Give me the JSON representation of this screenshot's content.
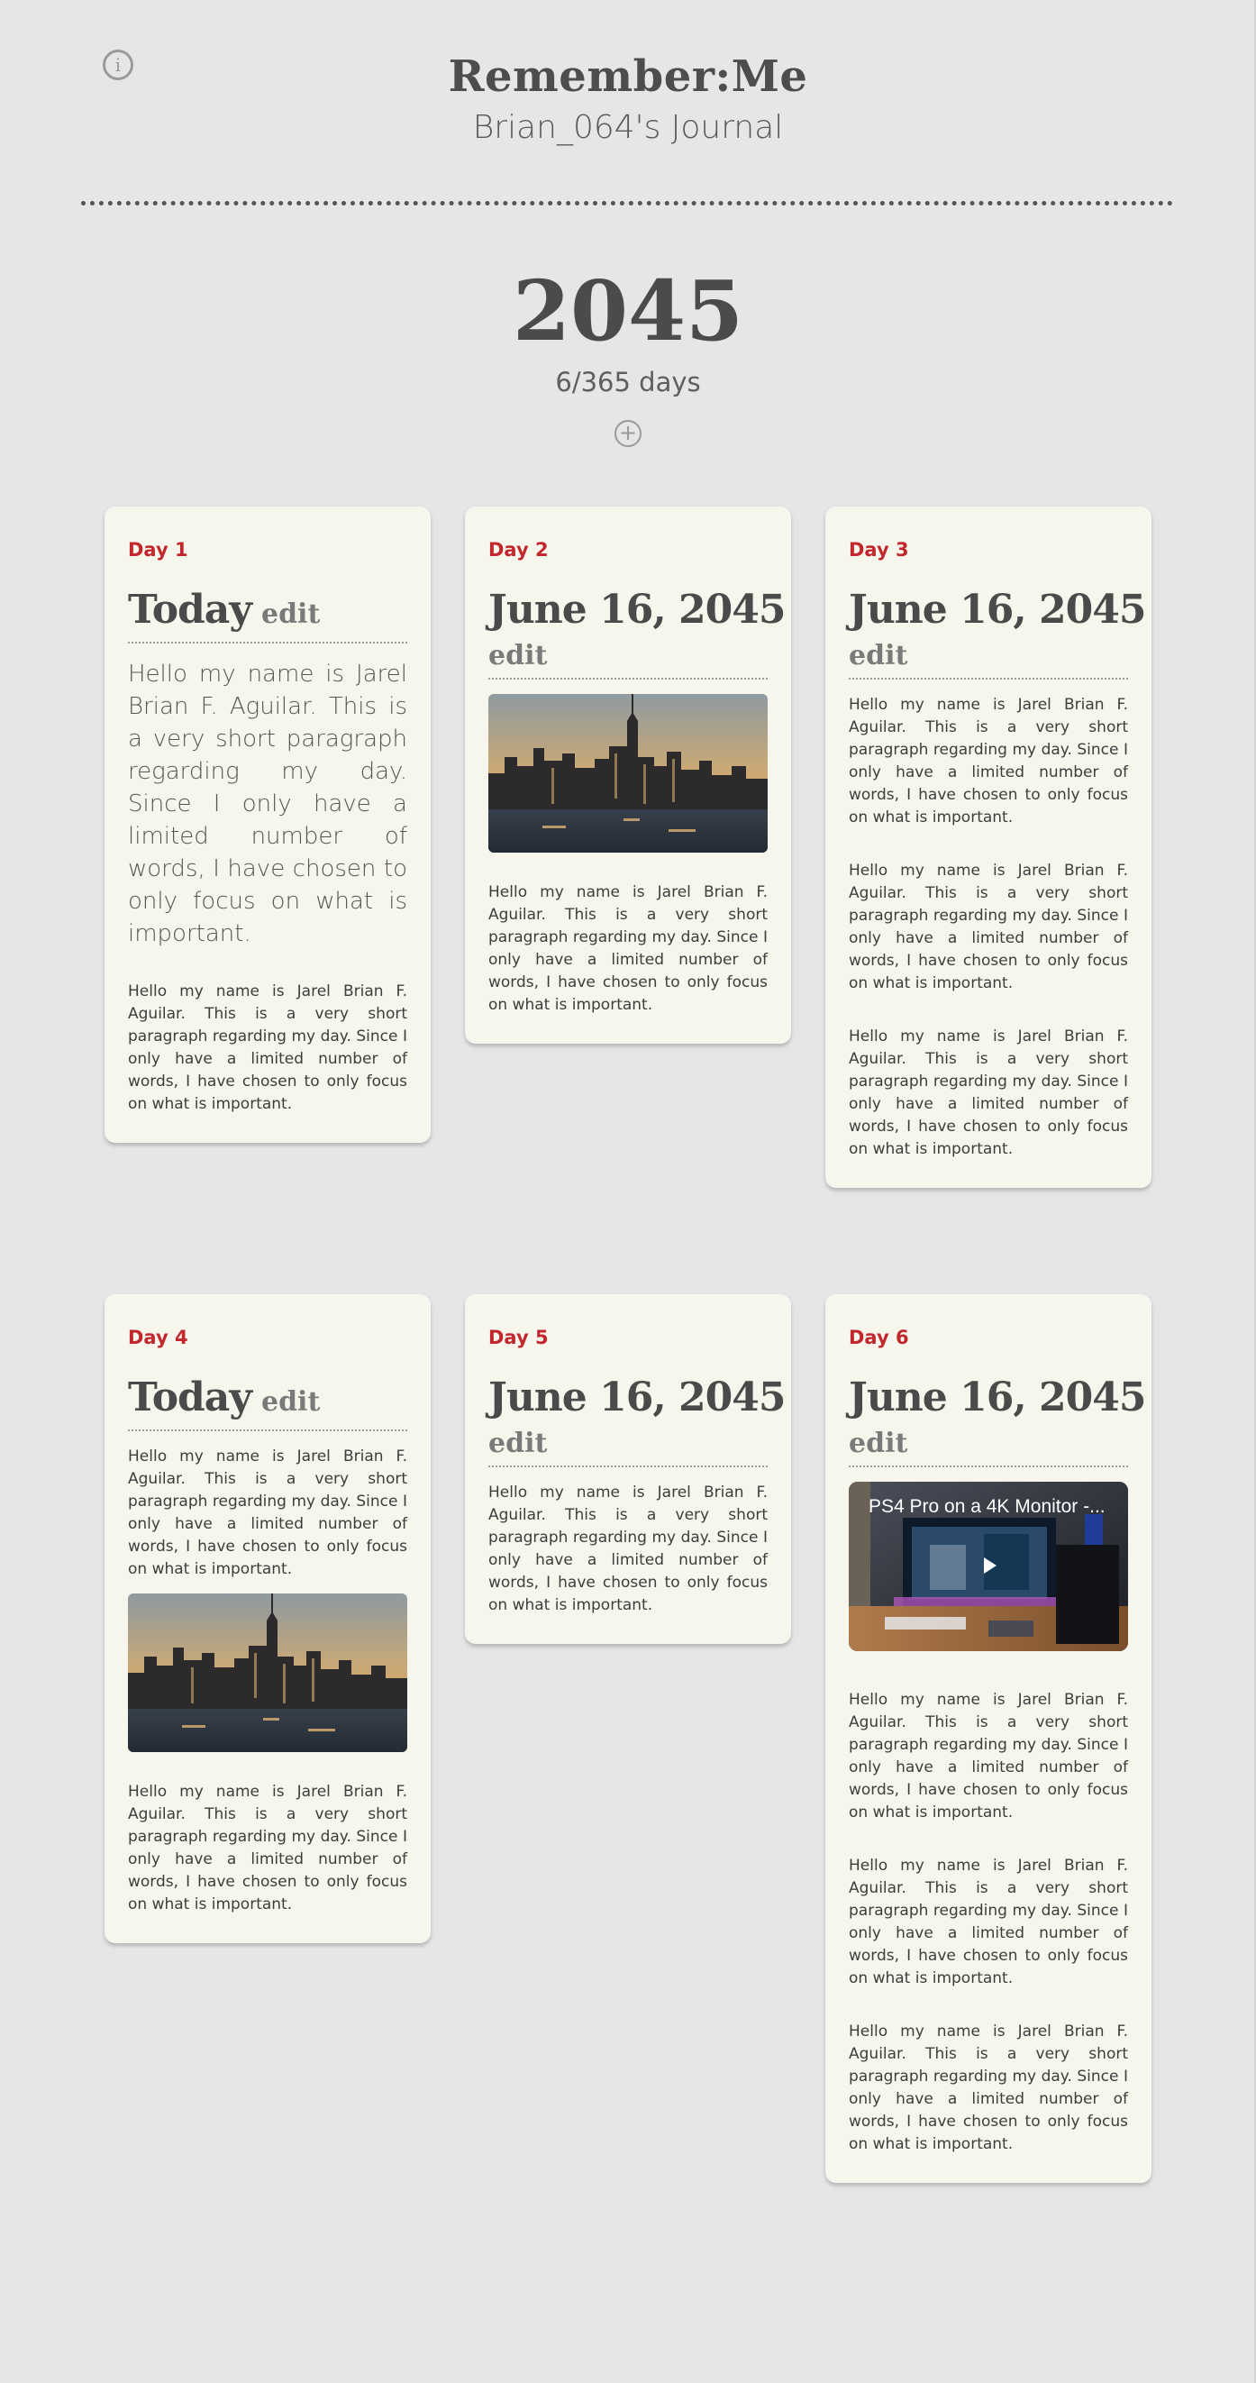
{
  "app": {
    "title": "Remember:Me",
    "subtitle": "Brian_064's Journal",
    "info_icon": "i",
    "add_icon": "+"
  },
  "year": {
    "value": "2045",
    "progress": "6/365 days"
  },
  "entries": [
    {
      "day": "Day 1",
      "title": "Today",
      "edit": "edit",
      "lead": "Hello my name is Jarel Brian F. Aguilar. This is a very short paragraph regarding my day. Since I only have a limited number of words, I have chosen to only focus on what is important.",
      "paragraphs": [
        "Hello my name is Jarel Brian F. Aguilar. This is a very short paragraph regarding my day. Since I only have a limited number of words, I have chosen to only focus on what is important."
      ]
    },
    {
      "day": "Day 2",
      "title": "June 16, 2045",
      "edit": "edit",
      "image": "city-skyline-photo",
      "paragraphs": [
        "Hello my name is Jarel Brian F. Aguilar. This is a very short paragraph regarding my day. Since I only have a limited number of words, I have chosen to only focus on what is important."
      ]
    },
    {
      "day": "Day 3",
      "title": "June 16, 2045",
      "edit": "edit",
      "paragraphs": [
        "Hello my name is Jarel Brian F. Aguilar. This is a very short paragraph regarding my day. Since I only have a limited number of words, I have chosen to only focus on what is important.",
        "Hello my name is Jarel Brian F. Aguilar. This is a very short paragraph regarding my day. Since I only have a limited number of words, I have chosen to only focus on what is important.",
        "Hello my name is Jarel Brian F. Aguilar. This is a very short paragraph regarding my day. Since I only have a limited number of words, I have chosen to only focus on what is important."
      ]
    },
    {
      "day": "Day 4",
      "title": "Today",
      "edit": "edit",
      "image": "city-skyline-photo",
      "paragraphs": [
        "Hello my name is Jarel Brian F. Aguilar. This is a very short paragraph regarding my day. Since I only have a limited number of words, I have chosen to only focus on what is important.",
        "Hello my name is Jarel Brian F. Aguilar. This is a very short paragraph regarding my day. Since I only have a limited number of words, I have chosen to only focus on what is important."
      ]
    },
    {
      "day": "Day 5",
      "title": "June 16, 2045",
      "edit": "edit",
      "paragraphs": [
        "Hello my name is Jarel Brian F. Aguilar. This is a very short paragraph regarding my day. Since I only have a limited number of words, I have chosen to only focus on what is important."
      ]
    },
    {
      "day": "Day 6",
      "title": "June 16, 2045",
      "edit": "edit",
      "video_title": "PS4 Pro on a 4K Monitor -...",
      "paragraphs": [
        "Hello my name is Jarel Brian F. Aguilar. This is a very short paragraph regarding my day. Since I only have a limited number of words, I have chosen to only focus on what is important.",
        "Hello my name is Jarel Brian F. Aguilar. This is a very short paragraph regarding my day. Since I only have a limited number of words, I have chosen to only focus on what is important.",
        "Hello my name is Jarel Brian F. Aguilar. This is a very short paragraph regarding my day. Since I only have a limited number of words, I have chosen to only focus on what is important."
      ]
    }
  ],
  "colors": {
    "background": "#e6e6e6",
    "card": "#f7f6ec",
    "day_label": "#c1272d",
    "heading": "#4a4a4a",
    "edit": "#7a7a7a"
  }
}
